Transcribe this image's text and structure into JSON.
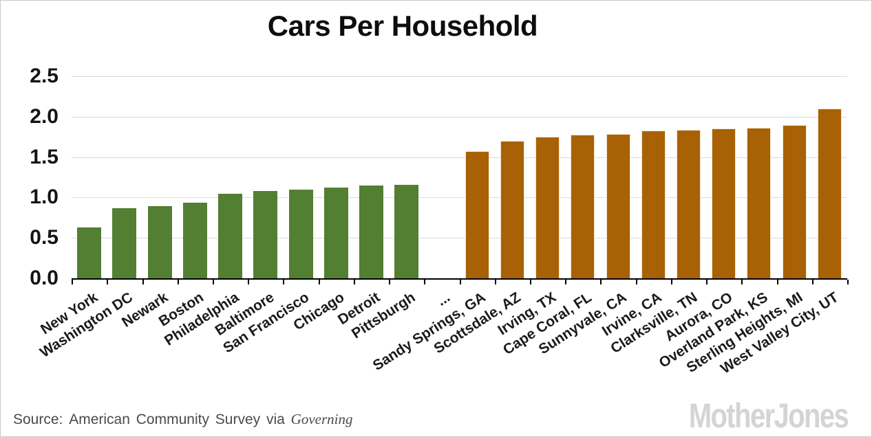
{
  "title": "Cars Per Household",
  "source": {
    "label": "Source:",
    "text": "American Community Survey via",
    "publication": "Governing"
  },
  "branding": "MotherJones",
  "chart_data": {
    "type": "bar",
    "title": "Cars Per Household",
    "xlabel": "",
    "ylabel": "",
    "ylim": [
      0,
      2.5
    ],
    "yticks": [
      "0.0",
      "0.5",
      "1.0",
      "1.5",
      "2.0",
      "2.5"
    ],
    "grid": "horizontal",
    "legend": "none",
    "gap_label": "...",
    "groups": [
      {
        "name": "low-vehicle-cities",
        "color": "#527f32",
        "bar_border": null,
        "categories": [
          "New York",
          "Washington DC",
          "Newark",
          "Boston",
          "Philadelphia",
          "Baltimore",
          "San Francisco",
          "Chicago",
          "Detroit",
          "Pittsburgh"
        ],
        "values": [
          0.63,
          0.87,
          0.89,
          0.94,
          1.05,
          1.08,
          1.1,
          1.12,
          1.15,
          1.16
        ]
      },
      {
        "name": "high-vehicle-cities",
        "color": "#a96106",
        "bar_border": "#f3e7cf",
        "categories": [
          "Sandy Springs, GA",
          "Scottsdale, AZ",
          "Irving, TX",
          "Cape Coral, FL",
          "Sunnyvale, CA",
          "Irvine, CA",
          "Clarksville, TN",
          "Aurora, CO",
          "Overland Park, KS",
          "Sterling Heights, MI",
          "West Valley City, UT"
        ],
        "values": [
          1.57,
          1.7,
          1.75,
          1.78,
          1.79,
          1.83,
          1.84,
          1.85,
          1.86,
          1.9,
          2.1
        ]
      }
    ]
  }
}
